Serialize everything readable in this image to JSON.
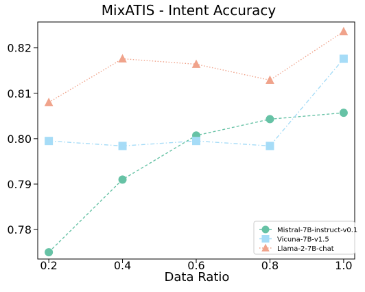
{
  "chart_data": {
    "type": "line",
    "title": "MixATIS - Intent Accuracy",
    "xlabel": "Data Ratio",
    "ylabel": "",
    "x": [
      0.2,
      0.4,
      0.6,
      0.8,
      1.0
    ],
    "x_tick_labels": [
      "0.2",
      "0.4",
      "0.6",
      "0.8",
      "1.0"
    ],
    "y_ticks": [
      0.78,
      0.79,
      0.8,
      0.81,
      0.82
    ],
    "y_tick_labels": [
      "0.78",
      "0.79",
      "0.80",
      "0.81",
      "0.82"
    ],
    "xlim": [
      0.17,
      1.03
    ],
    "ylim": [
      0.7735,
      0.8257
    ],
    "grid": false,
    "legend_position": "bottom-right",
    "series": [
      {
        "name": "Mistral-7B-instruct-v0.1",
        "values": [
          0.775,
          0.791,
          0.8007,
          0.8043,
          0.8057
        ],
        "color": "#66c2a5",
        "marker": "circle",
        "line_style": "dashed"
      },
      {
        "name": "Vicuna-7B-v1.5",
        "values": [
          0.7995,
          0.7984,
          0.7995,
          0.7984,
          0.8176
        ],
        "color": "#a6dcf7",
        "marker": "square",
        "line_style": "dashdot"
      },
      {
        "name": "Llama-2-7B-chat",
        "values": [
          0.808,
          0.8176,
          0.8164,
          0.8129,
          0.8236
        ],
        "color": "#f0a38b",
        "marker": "triangle",
        "line_style": "dotted"
      }
    ]
  }
}
